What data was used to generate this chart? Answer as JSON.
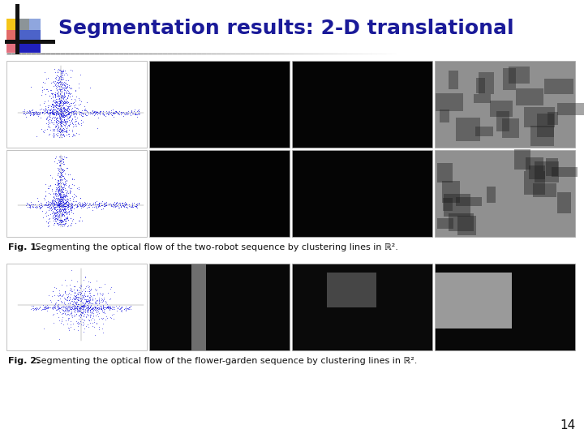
{
  "title": "Segmentation results: 2-D translational",
  "title_color": "#1a1a99",
  "title_fontsize": 18,
  "background_color": "#ffffff",
  "slide_number": "14",
  "fig1_caption_bold": "Fig. 1.",
  "fig1_caption_rest": " Segmenting the optical flow of the two-robot sequence by clustering lines in ℝ².",
  "fig2_caption_bold": "Fig. 2.",
  "fig2_caption_rest": " Segmenting the optical flow of the flower-garden sequence by clustering lines in ℝ².",
  "logo_yellow": "#f5c518",
  "logo_red": "#e06070",
  "logo_blue_dark": "#2020bb",
  "logo_blue_light": "#6080d0",
  "cross_color": "#111111",
  "header_line_color": "#555555",
  "scatter_color": "#0000dd",
  "img_border_color": "#aaaaaa",
  "caption_fontsize": 8,
  "slide_num_fontsize": 11
}
